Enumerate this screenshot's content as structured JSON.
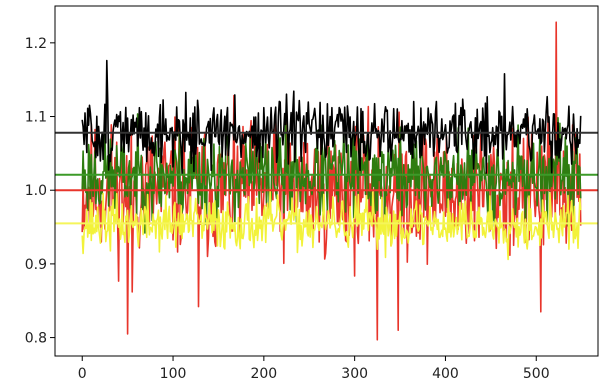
{
  "chart_data": {
    "type": "line",
    "title": "",
    "xlabel": "",
    "ylabel": "",
    "xlim": [
      -30,
      568
    ],
    "ylim": [
      0.775,
      1.25
    ],
    "xticks": [
      "0",
      "100",
      "200",
      "300",
      "400",
      "500"
    ],
    "xtick_values": [
      0,
      100,
      200,
      300,
      400,
      500
    ],
    "yticks": [
      "0.8",
      "0.9",
      "1.0",
      "1.1",
      "1.2"
    ],
    "ytick_values": [
      0.8,
      0.9,
      1.0,
      1.1,
      1.2
    ],
    "n_points": 550,
    "grid": false,
    "legend": "none",
    "series": [
      {
        "color": "#e8352b",
        "baseline": 1.0,
        "spread": 0.045,
        "seed": 11,
        "spikes": [
          {
            "x": 50,
            "y": 0.805
          },
          {
            "x": 55,
            "y": 0.862
          },
          {
            "x": 128,
            "y": 0.842
          },
          {
            "x": 325,
            "y": 0.797
          },
          {
            "x": 348,
            "y": 0.81
          },
          {
            "x": 505,
            "y": 0.835
          },
          {
            "x": 522,
            "y": 1.228
          }
        ]
      },
      {
        "color": "#2e7d10",
        "baseline": 1.02,
        "spread": 0.03,
        "seed": 23,
        "spikes": []
      },
      {
        "color": "#f2f23a",
        "baseline": 0.955,
        "spread": 0.018,
        "seed": 37,
        "spikes": []
      },
      {
        "color": "#000000",
        "baseline": 1.078,
        "spread": 0.022,
        "seed": 51,
        "spikes": [
          {
            "x": 27,
            "y": 1.176
          },
          {
            "x": 465,
            "y": 1.158
          }
        ]
      }
    ],
    "hlines": [
      {
        "y": 1.078,
        "color": "#333333"
      },
      {
        "y": 1.021,
        "color": "#3c9a28"
      },
      {
        "y": 1.0,
        "color": "#e8352b"
      },
      {
        "y": 0.955,
        "color": "#f5f55a"
      }
    ]
  }
}
